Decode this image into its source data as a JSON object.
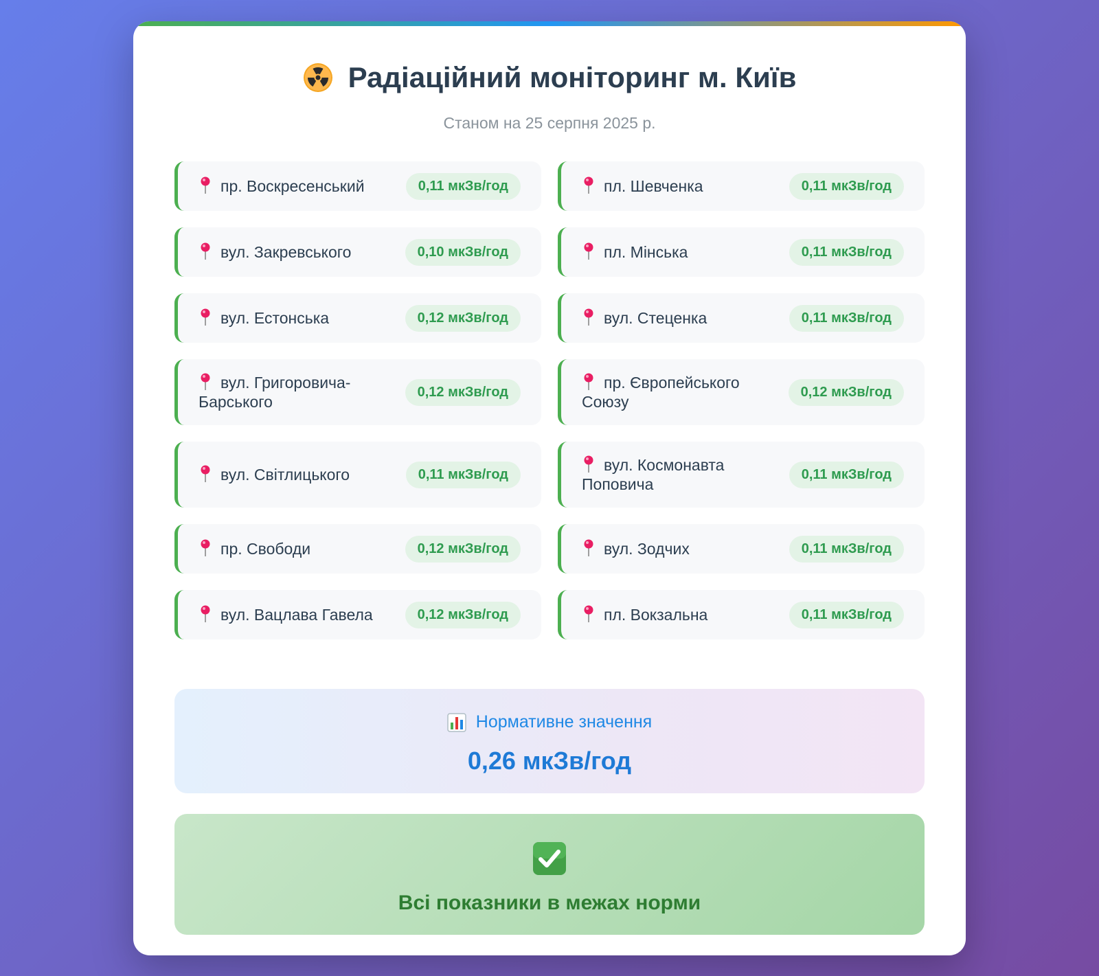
{
  "header": {
    "title": "Радіаційний моніторинг м. Київ",
    "subtitle": "Станом на 25 серпня 2025 р."
  },
  "locations": [
    {
      "name": "пр. Воскресенський",
      "value": "0,11 мкЗв/год"
    },
    {
      "name": "пл. Шевченка",
      "value": "0,11 мкЗв/год"
    },
    {
      "name": "вул. Закревського",
      "value": "0,10 мкЗв/год"
    },
    {
      "name": "пл. Мінська",
      "value": "0,11 мкЗв/год"
    },
    {
      "name": "вул. Естонська",
      "value": "0,12 мкЗв/год"
    },
    {
      "name": "вул. Стеценка",
      "value": "0,11 мкЗв/год"
    },
    {
      "name": "вул. Григоровича-Барського",
      "value": "0,12 мкЗв/год"
    },
    {
      "name": "пр. Європейського Союзу",
      "value": "0,12 мкЗв/год"
    },
    {
      "name": "вул. Світлицького",
      "value": "0,11 мкЗв/год"
    },
    {
      "name": "вул. Космонавта Поповича",
      "value": "0,11 мкЗв/год"
    },
    {
      "name": "пр. Свободи",
      "value": "0,12 мкЗв/год"
    },
    {
      "name": "вул. Зодчих",
      "value": "0,11 мкЗв/год"
    },
    {
      "name": "вул. Вацлава Гавела",
      "value": "0,12 мкЗв/год"
    },
    {
      "name": "пл. Вокзальна",
      "value": "0,11 мкЗв/год"
    }
  ],
  "norm": {
    "label": "Нормативне значення",
    "value": "0,26 мкЗв/год"
  },
  "status": {
    "text": "Всі показники в межах норми"
  },
  "icons": {
    "title_icon": "radiation-icon",
    "location_icon": "pin-icon",
    "norm_icon": "bar-chart-icon",
    "status_icon": "check-mark-icon"
  },
  "colors": {
    "background_start": "#667eea",
    "background_end": "#764ba2",
    "accent_green": "#4caf50",
    "value_green": "#2e9b4f",
    "norm_blue": "#1e88e5",
    "status_green": "#2e7d32"
  }
}
